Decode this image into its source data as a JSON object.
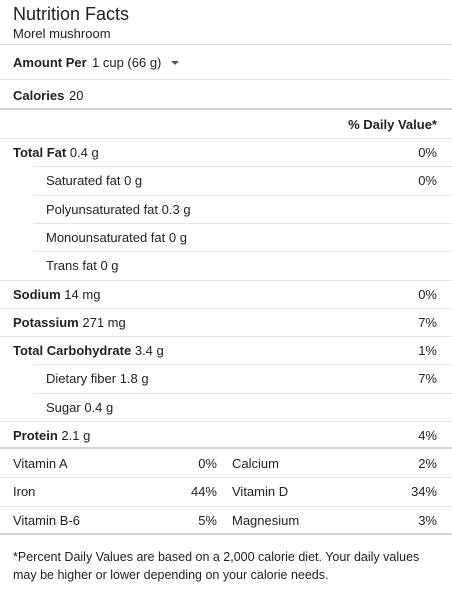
{
  "header": {
    "title": "Nutrition Facts",
    "subtitle": "Morel mushroom"
  },
  "serving": {
    "label": "Amount Per",
    "value": "1 cup (66 g)",
    "dropdown_icon": "caret-down-icon"
  },
  "calories": {
    "label": "Calories",
    "value": "20"
  },
  "daily_value_header": "% Daily Value*",
  "nutrients": [
    {
      "name": "Total Fat",
      "amount": "0.4 g",
      "pct": "0%"
    },
    {
      "name": "Saturated fat",
      "amount": "0 g",
      "pct": "0%"
    },
    {
      "name": "Polyunsaturated fat",
      "amount": "0.3 g",
      "pct": ""
    },
    {
      "name": "Monounsaturated fat",
      "amount": "0 g",
      "pct": ""
    },
    {
      "name": "Trans fat",
      "amount": "0 g",
      "pct": ""
    },
    {
      "name": "Sodium",
      "amount": "14 mg",
      "pct": "0%"
    },
    {
      "name": "Potassium",
      "amount": "271 mg",
      "pct": "7%"
    },
    {
      "name": "Total Carbohydrate",
      "amount": "3.4 g",
      "pct": "1%"
    },
    {
      "name": "Dietary fiber",
      "amount": "1.8 g",
      "pct": "7%"
    },
    {
      "name": "Sugar",
      "amount": "0.4 g",
      "pct": ""
    },
    {
      "name": "Protein",
      "amount": "2.1 g",
      "pct": "4%"
    }
  ],
  "vitamins": [
    {
      "left_name": "Vitamin A",
      "left_pct": "0%",
      "right_name": "Calcium",
      "right_pct": "2%"
    },
    {
      "left_name": "Iron",
      "left_pct": "44%",
      "right_name": "Vitamin D",
      "right_pct": "34%"
    },
    {
      "left_name": "Vitamin B-6",
      "left_pct": "5%",
      "right_name": "Magnesium",
      "right_pct": "3%"
    }
  ],
  "footnote": "*Percent Daily Values are based on a 2,000 calorie diet. Your daily values may be higher or lower depending on your calorie needs."
}
